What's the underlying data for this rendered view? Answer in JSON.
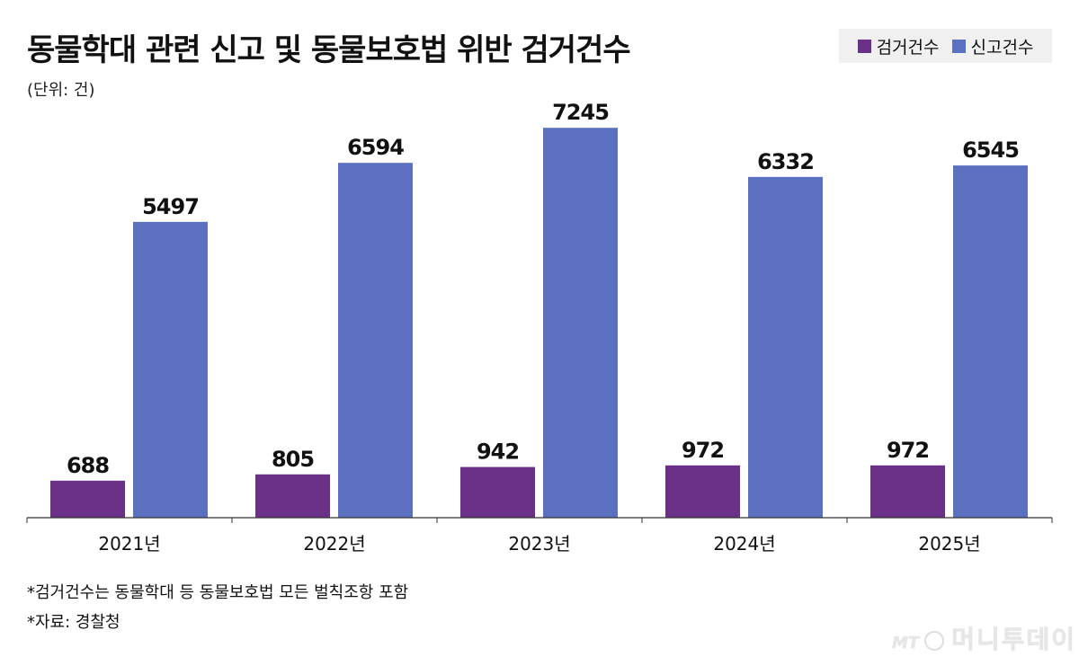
{
  "title": "동물학대 관련 신고 및 동물보호법 위반 검거건수",
  "unit": "(단위: 건)",
  "notes": [
    "*검거건수는 동물학대 등 동물보호법 모든 벌칙조항 포함",
    "*자료: 경찰청"
  ],
  "watermark": {
    "prefix": "MT",
    "text": "머니투데이"
  },
  "chart_data": {
    "type": "bar",
    "title": "동물학대 관련 신고 및 동물보호법 위반 검거건수",
    "categories": [
      "2021년",
      "2022년",
      "2023년",
      "2024년",
      "2025년"
    ],
    "series": [
      {
        "name": "검거건수",
        "color": "#6b3189",
        "values": [
          688,
          805,
          942,
          972,
          972
        ]
      },
      {
        "name": "신고건수",
        "color": "#5b70c0",
        "values": [
          5497,
          6594,
          7245,
          6332,
          6545
        ]
      }
    ],
    "ylim": [
      0,
      8000
    ],
    "grid": false,
    "legend": "top-right",
    "data_labels": true
  }
}
